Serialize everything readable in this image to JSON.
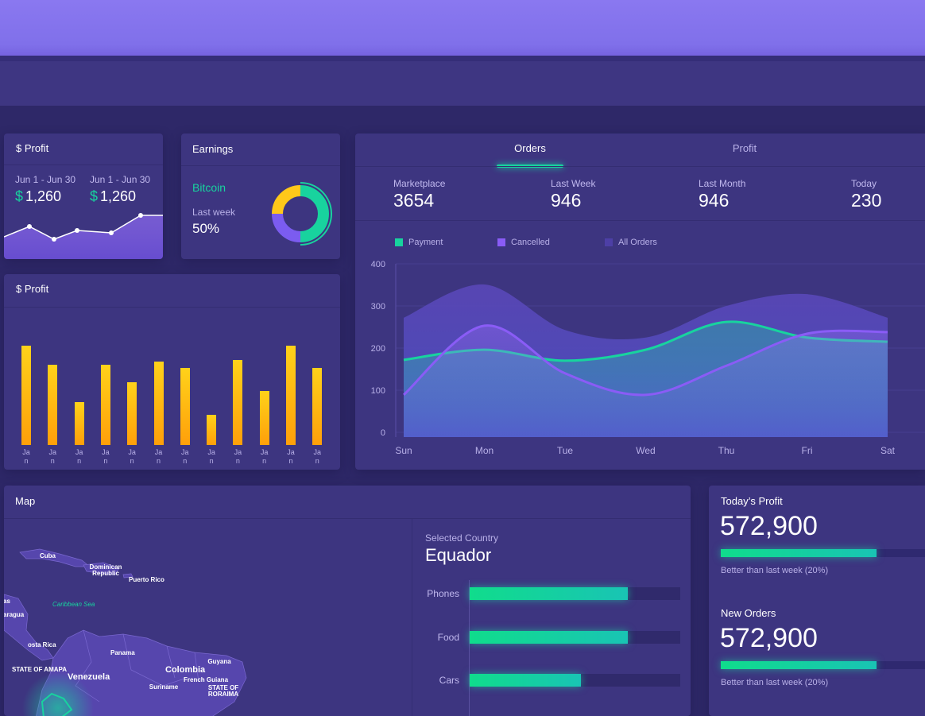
{
  "profit_card": {
    "title": "$ Profit",
    "stats": [
      {
        "period": "Jun 1 - Jun 30",
        "currency": "$",
        "value": "1,260"
      },
      {
        "period": "Jun 1 - Jun 30",
        "currency": "$",
        "value": "1,260"
      }
    ],
    "sparkline": [
      28,
      41,
      25,
      36,
      33,
      55,
      55
    ]
  },
  "earnings": {
    "title": "Earnings",
    "asset": "Bitcoin",
    "period": "Last week",
    "value": "50%",
    "donut": {
      "type": "pie",
      "values": [
        50,
        25,
        25
      ],
      "colors": [
        "#18d39e",
        "#7b5cf0",
        "#ffc81a"
      ]
    }
  },
  "profit_bars": {
    "type": "bar",
    "title": "$ Profit",
    "categories": [
      "Jan",
      "Jan",
      "Jan",
      "Jan",
      "Jan",
      "Jan",
      "Jan",
      "Jan",
      "Jan",
      "Jan",
      "Jan",
      "Jan"
    ],
    "values": [
      125,
      101,
      54,
      101,
      79,
      105,
      97,
      38,
      107,
      68,
      125,
      97
    ],
    "color": "#ffb40a"
  },
  "orders": {
    "tabs": [
      "Orders",
      "Profit"
    ],
    "stats": [
      {
        "label": "Marketplace",
        "value": 3654
      },
      {
        "label": "Last Week",
        "value": 946
      },
      {
        "label": "Last Month",
        "value": 946
      },
      {
        "label": "Today",
        "value": 230
      }
    ],
    "chart_data": {
      "type": "line",
      "categories": [
        "Sun",
        "Mon",
        "Tue",
        "Wed",
        "Thu",
        "Fri",
        "Sat"
      ],
      "series": [
        {
          "name": "Payment",
          "color": "#18d39e",
          "values": [
            172,
            196,
            170,
            196,
            262,
            225,
            215
          ]
        },
        {
          "name": "Cancelled",
          "color": "#8a5cf6",
          "values": [
            89,
            253,
            140,
            89,
            158,
            234,
            238
          ]
        },
        {
          "name": "All Orders",
          "color": "#4d3fa6",
          "values": [
            272,
            351,
            243,
            225,
            300,
            328,
            272
          ]
        }
      ],
      "ylim": [
        0,
        400
      ],
      "yticks": [
        0,
        100,
        200,
        300,
        400
      ],
      "grid": true
    }
  },
  "map": {
    "title": "Map",
    "labels": [
      "Cuba",
      "Dominican Republic",
      "Puerto Rico",
      "Caribbean Sea",
      "as",
      "aragua",
      "osta Rica",
      "Panama",
      "Venezuela",
      "Colombia",
      "Guyana",
      "French Guiana",
      "Suriname",
      "STATE OF RORAIMA",
      "STATE OF AMAPA"
    ],
    "selected_label": "Selected Country",
    "selected_country": "Equador",
    "bars": {
      "type": "bar",
      "categories": [
        "Phones",
        "Food",
        "Cars"
      ],
      "values": [
        75,
        75,
        53
      ],
      "xlim": [
        0,
        100
      ]
    }
  },
  "kpis": [
    {
      "title": "Today’s Profit",
      "value": "572,900",
      "progress": 59,
      "note": "Better than last week (20%)"
    },
    {
      "title": "New Orders",
      "value": "572,900",
      "progress": 59,
      "note": "Better than last week (20%)"
    }
  ],
  "kpi_xlim": [
    0,
    100
  ]
}
